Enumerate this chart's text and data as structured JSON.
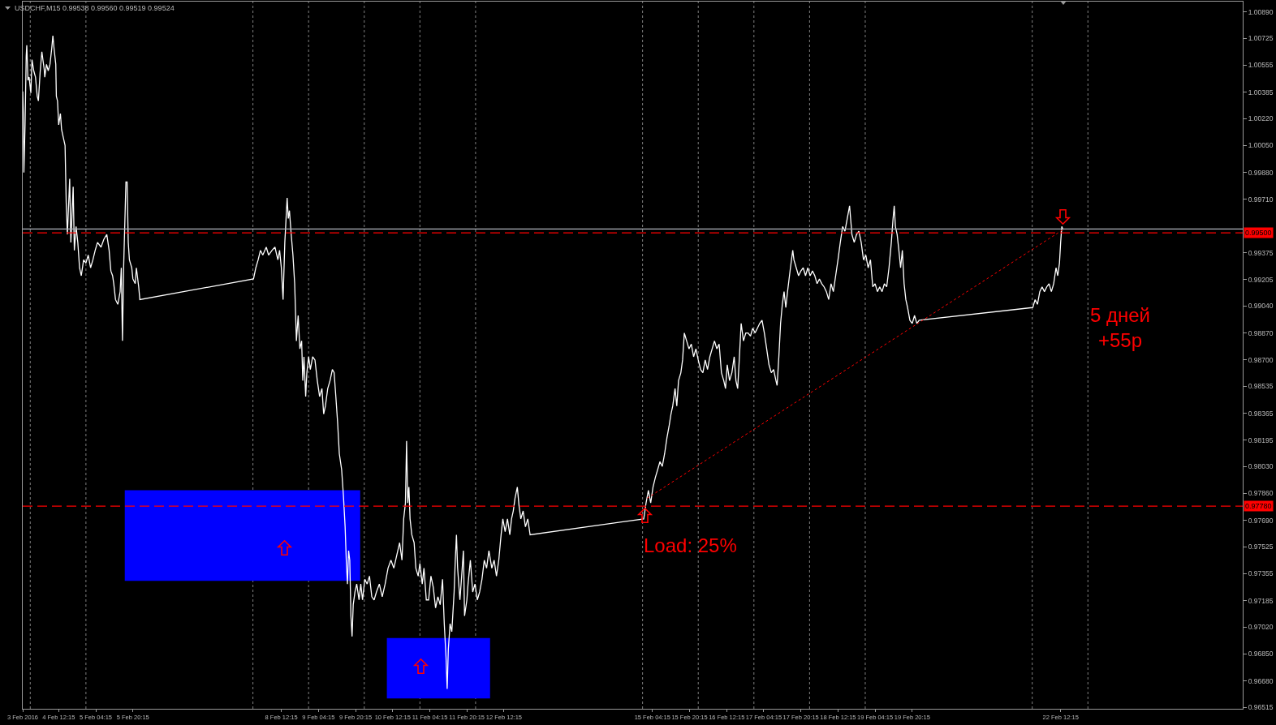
{
  "chart_data": {
    "type": "line",
    "title": "USDCHF,M15 0.99538 0.99560 0.99519 0.99524",
    "xlim": [
      "2016-02-03T20:45",
      "2016-02-25T18:45"
    ],
    "ylim": [
      0.96505,
      1.00955
    ],
    "xticks": [
      {
        "value": "2016-02-03T20:45",
        "label": "3 Feb 2016"
      },
      {
        "value": "2016-02-04T12:15",
        "label": "4 Feb 12:15"
      },
      {
        "value": "2016-02-05T04:15",
        "label": "5 Feb 04:15"
      },
      {
        "value": "2016-02-05T20:15",
        "label": "5 Feb 20:15"
      },
      {
        "value": "2016-02-08T12:15",
        "label": "8 Feb 12:15"
      },
      {
        "value": "2016-02-09T04:15",
        "label": "9 Feb 04:15"
      },
      {
        "value": "2016-02-09T20:15",
        "label": "9 Feb 20:15"
      },
      {
        "value": "2016-02-10T12:15",
        "label": "10 Feb 12:15"
      },
      {
        "value": "2016-02-11T04:15",
        "label": "11 Feb 04:15"
      },
      {
        "value": "2016-02-11T20:15",
        "label": "11 Feb 20:15"
      },
      {
        "value": "2016-02-12T12:15",
        "label": "12 Feb 12:15"
      },
      {
        "value": "2016-02-15T04:15",
        "label": "15 Feb 04:15"
      },
      {
        "value": "2016-02-15T20:15",
        "label": "15 Feb 20:15"
      },
      {
        "value": "2016-02-16T12:15",
        "label": "16 Feb 12:15"
      },
      {
        "value": "2016-02-17T04:15",
        "label": "17 Feb 04:15"
      },
      {
        "value": "2016-02-17T20:15",
        "label": "17 Feb 20:15"
      },
      {
        "value": "2016-02-18T12:15",
        "label": "18 Feb 12:15"
      },
      {
        "value": "2016-02-19T04:15",
        "label": "19 Feb 04:15"
      },
      {
        "value": "2016-02-19T20:15",
        "label": "19 Feb 20:15"
      },
      {
        "value": "2016-02-22T12:15",
        "label": "22 Feb 12:15"
      }
    ],
    "yticks": [
      {
        "value": 1.0089,
        "label": "1.00890"
      },
      {
        "value": 1.00725,
        "label": "1.00725"
      },
      {
        "value": 1.00555,
        "label": "1.00555"
      },
      {
        "value": 1.00385,
        "label": "1.00385"
      },
      {
        "value": 1.0022,
        "label": "1.00220"
      },
      {
        "value": 1.0005,
        "label": "1.00050"
      },
      {
        "value": 0.9988,
        "label": "0.99880"
      },
      {
        "value": 0.9971,
        "label": "0.99710"
      },
      {
        "value": 0.99375,
        "label": "0.99375"
      },
      {
        "value": 0.99205,
        "label": "0.99205"
      },
      {
        "value": 0.9904,
        "label": "0.99040"
      },
      {
        "value": 0.9887,
        "label": "0.98870"
      },
      {
        "value": 0.987,
        "label": "0.98700"
      },
      {
        "value": 0.98535,
        "label": "0.98535"
      },
      {
        "value": 0.98365,
        "label": "0.98365"
      },
      {
        "value": 0.98195,
        "label": "0.98195"
      },
      {
        "value": 0.9803,
        "label": "0.98030"
      },
      {
        "value": 0.9786,
        "label": "0.97860"
      },
      {
        "value": 0.9769,
        "label": "0.97690"
      },
      {
        "value": 0.97525,
        "label": "0.97525"
      },
      {
        "value": 0.97355,
        "label": "0.97355"
      },
      {
        "value": 0.97185,
        "label": "0.97185"
      },
      {
        "value": 0.9702,
        "label": "0.97020"
      },
      {
        "value": 0.9685,
        "label": "0.96850"
      },
      {
        "value": 0.9668,
        "label": "0.96680"
      },
      {
        "value": 0.96515,
        "label": "0.96515"
      }
    ],
    "series": [
      {
        "x": [
          "2016-02-05T16:45",
          "2016-02-09T22:15"
        ],
        "values": [
          null,
          null
        ],
        "lower": [
          0.9731,
          0.9731
        ],
        "upper": [
          0.9788,
          0.9788
        ],
        "color": "#0000ff"
      },
      {
        "x": [
          "2016-02-10T09:45",
          "2016-02-12T06:15"
        ],
        "values": [
          null,
          null
        ],
        "lower": [
          0.9657,
          0.9657
        ],
        "upper": [
          0.9695,
          0.9695
        ],
        "color": "#0000ff"
      },
      {
        "color": "#ffffff",
        "x": [
          "2016-02-03T20:45",
          "2016-02-03T21:00",
          "2016-02-03T21:15",
          "2016-02-03T21:45",
          "2016-02-03T22:15",
          "2016-02-03T22:30",
          "2016-02-03T23:00",
          "2016-02-03T23:30",
          "2016-02-04T00:15",
          "2016-02-04T00:45",
          "2016-02-04T01:30",
          "2016-02-04T02:15",
          "2016-02-04T03:00",
          "2016-02-04T03:30",
          "2016-02-04T04:15",
          "2016-02-04T05:00",
          "2016-02-04T06:00",
          "2016-02-04T06:15",
          "2016-02-04T07:00",
          "2016-02-04T07:45",
          "2016-02-04T08:30",
          "2016-02-04T09:15",
          "2016-02-04T09:45",
          "2016-02-04T10:15",
          "2016-02-04T11:00",
          "2016-02-04T11:15",
          "2016-02-04T11:45",
          "2016-02-04T12:15",
          "2016-02-04T13:00",
          "2016-02-04T13:30",
          "2016-02-04T14:15",
          "2016-02-04T15:00",
          "2016-02-04T15:30",
          "2016-02-04T16:00",
          "2016-02-04T17:00",
          "2016-02-04T17:30",
          "2016-02-04T18:30",
          "2016-02-04T19:00",
          "2016-02-04T19:45",
          "2016-02-04T20:30",
          "2016-02-04T21:15",
          "2016-02-04T22:00",
          "2016-02-04T23:00",
          "2016-02-05T00:00",
          "2016-02-05T01:00",
          "2016-02-05T02:00",
          "2016-02-05T03:00",
          "2016-02-05T04:00",
          "2016-02-05T05:00",
          "2016-02-05T06:30",
          "2016-02-05T07:45",
          "2016-02-05T09:00",
          "2016-02-05T10:00",
          "2016-02-05T10:45",
          "2016-02-05T11:30",
          "2016-02-05T12:00",
          "2016-02-05T12:45",
          "2016-02-05T13:45",
          "2016-02-05T14:45",
          "2016-02-05T15:15",
          "2016-02-05T15:45",
          "2016-02-05T16:15",
          "2016-02-05T17:15",
          "2016-02-05T17:45",
          "2016-02-05T18:15",
          "2016-02-05T18:45",
          "2016-02-05T19:45",
          "2016-02-05T20:15",
          "2016-02-05T21:15",
          "2016-02-05T21:45",
          "2016-02-05T22:45",
          "2016-02-05T23:15",
          "2016-02-08T00:15",
          "2016-02-08T01:15",
          "2016-02-08T02:15",
          "2016-02-08T03:15",
          "2016-02-08T04:15",
          "2016-02-08T05:45",
          "2016-02-08T06:45",
          "2016-02-08T08:15",
          "2016-02-08T09:30",
          "2016-02-08T10:45",
          "2016-02-08T11:30",
          "2016-02-08T12:15",
          "2016-02-08T13:00",
          "2016-02-08T13:45",
          "2016-02-08T14:45",
          "2016-02-08T15:15",
          "2016-02-08T15:45",
          "2016-02-08T16:30",
          "2016-02-08T17:15",
          "2016-02-08T18:00",
          "2016-02-08T18:45",
          "2016-02-08T19:30",
          "2016-02-08T20:15",
          "2016-02-08T21:00",
          "2016-02-08T21:30",
          "2016-02-08T22:00",
          "2016-02-08T22:45",
          "2016-02-08T23:15",
          "2016-02-09T00:00",
          "2016-02-09T00:45",
          "2016-02-09T01:45",
          "2016-02-09T02:45",
          "2016-02-09T03:45",
          "2016-02-09T04:45",
          "2016-02-09T05:45",
          "2016-02-09T06:30",
          "2016-02-09T07:15",
          "2016-02-09T08:15",
          "2016-02-09T09:15",
          "2016-02-09T10:15",
          "2016-02-09T11:00",
          "2016-02-09T11:45",
          "2016-02-09T12:30",
          "2016-02-09T13:15",
          "2016-02-09T14:15",
          "2016-02-09T15:00",
          "2016-02-09T15:45",
          "2016-02-09T16:15",
          "2016-02-09T16:45",
          "2016-02-09T17:15",
          "2016-02-09T17:45",
          "2016-02-09T18:15",
          "2016-02-09T18:45",
          "2016-02-09T19:15",
          "2016-02-09T20:00",
          "2016-02-09T20:45",
          "2016-02-09T21:45",
          "2016-02-09T22:30",
          "2016-02-09T23:15",
          "2016-02-10T00:15",
          "2016-02-10T01:15",
          "2016-02-10T02:15",
          "2016-02-10T03:15",
          "2016-02-10T04:15",
          "2016-02-10T05:15",
          "2016-02-10T06:30",
          "2016-02-10T07:45",
          "2016-02-10T09:00",
          "2016-02-10T10:15",
          "2016-02-10T11:30",
          "2016-02-10T12:45",
          "2016-02-10T14:00",
          "2016-02-10T15:15",
          "2016-02-10T16:15",
          "2016-02-10T17:00",
          "2016-02-10T17:45",
          "2016-02-10T18:15",
          "2016-02-10T18:45",
          "2016-02-10T19:15",
          "2016-02-10T19:45",
          "2016-02-10T20:30",
          "2016-02-10T21:30",
          "2016-02-10T22:15",
          "2016-02-10T23:15",
          "2016-02-11T00:00",
          "2016-02-11T01:00",
          "2016-02-11T01:45",
          "2016-02-11T02:45",
          "2016-02-11T03:45",
          "2016-02-11T04:45",
          "2016-02-11T05:45",
          "2016-02-11T06:45",
          "2016-02-11T07:45",
          "2016-02-11T08:45",
          "2016-02-11T09:45",
          "2016-02-11T10:30",
          "2016-02-11T11:15",
          "2016-02-11T11:45",
          "2016-02-11T12:15",
          "2016-02-11T13:00",
          "2016-02-11T13:45",
          "2016-02-11T14:45",
          "2016-02-11T15:15",
          "2016-02-11T15:45",
          "2016-02-11T16:15",
          "2016-02-11T17:15",
          "2016-02-11T17:45",
          "2016-02-11T18:45",
          "2016-02-11T19:15",
          "2016-02-11T20:15",
          "2016-02-11T20:45",
          "2016-02-11T21:45",
          "2016-02-11T22:45",
          "2016-02-11T23:45",
          "2016-02-12T00:45",
          "2016-02-12T01:45",
          "2016-02-12T02:45",
          "2016-02-12T03:45",
          "2016-02-12T04:45",
          "2016-02-12T05:45",
          "2016-02-12T07:00",
          "2016-02-12T08:00",
          "2016-02-12T09:00",
          "2016-02-12T10:00",
          "2016-02-12T11:00",
          "2016-02-12T11:45",
          "2016-02-12T12:45",
          "2016-02-12T13:45",
          "2016-02-12T14:45",
          "2016-02-12T15:30",
          "2016-02-12T16:15",
          "2016-02-12T17:00",
          "2016-02-12T18:00",
          "2016-02-12T18:45",
          "2016-02-12T19:30",
          "2016-02-12T20:30",
          "2016-02-12T21:30",
          "2016-02-12T22:30",
          "2016-02-12T23:30",
          "2016-02-15T00:30",
          "2016-02-15T01:30",
          "2016-02-15T02:30",
          "2016-02-15T03:30",
          "2016-02-15T04:30",
          "2016-02-15T05:30",
          "2016-02-15T06:30",
          "2016-02-15T07:30",
          "2016-02-15T08:30",
          "2016-02-15T09:30",
          "2016-02-15T10:30",
          "2016-02-15T11:30",
          "2016-02-15T12:15",
          "2016-02-15T13:00",
          "2016-02-15T14:00",
          "2016-02-15T14:45",
          "2016-02-15T15:30",
          "2016-02-15T16:30",
          "2016-02-15T17:15",
          "2016-02-15T18:00",
          "2016-02-15T19:00",
          "2016-02-15T20:00",
          "2016-02-15T21:00",
          "2016-02-15T22:00",
          "2016-02-15T23:00",
          "2016-02-16T00:00",
          "2016-02-16T01:00",
          "2016-02-16T02:00",
          "2016-02-16T03:00",
          "2016-02-16T04:00",
          "2016-02-16T05:00",
          "2016-02-16T06:00",
          "2016-02-16T07:00",
          "2016-02-16T08:00",
          "2016-02-16T09:00",
          "2016-02-16T10:00",
          "2016-02-16T11:00",
          "2016-02-16T11:45",
          "2016-02-16T12:30",
          "2016-02-16T13:30",
          "2016-02-16T14:30",
          "2016-02-16T15:30",
          "2016-02-16T16:15",
          "2016-02-16T17:00",
          "2016-02-16T17:45",
          "2016-02-16T18:30",
          "2016-02-16T19:30",
          "2016-02-16T20:30",
          "2016-02-16T21:30",
          "2016-02-16T22:30",
          "2016-02-16T23:30",
          "2016-02-17T00:30",
          "2016-02-17T01:30",
          "2016-02-17T02:30",
          "2016-02-17T03:30",
          "2016-02-17T04:30",
          "2016-02-17T05:30",
          "2016-02-17T06:30",
          "2016-02-17T07:30",
          "2016-02-17T08:30",
          "2016-02-17T09:30",
          "2016-02-17T10:00",
          "2016-02-17T10:45",
          "2016-02-17T11:30",
          "2016-02-17T12:15",
          "2016-02-17T13:00",
          "2016-02-17T13:45",
          "2016-02-17T14:30",
          "2016-02-17T15:45",
          "2016-02-17T16:45",
          "2016-02-17T17:15",
          "2016-02-17T18:15",
          "2016-02-17T19:15",
          "2016-02-17T20:15",
          "2016-02-17T21:15",
          "2016-02-17T22:15",
          "2016-02-17T23:15",
          "2016-02-18T00:15",
          "2016-02-18T01:15",
          "2016-02-18T02:15",
          "2016-02-18T03:15",
          "2016-02-18T04:15",
          "2016-02-18T05:15",
          "2016-02-18T06:15",
          "2016-02-18T07:15",
          "2016-02-18T08:15",
          "2016-02-18T09:15",
          "2016-02-18T10:15",
          "2016-02-18T11:15",
          "2016-02-18T12:15",
          "2016-02-18T13:15",
          "2016-02-18T14:15",
          "2016-02-18T15:15",
          "2016-02-18T16:15",
          "2016-02-18T17:15",
          "2016-02-18T18:15",
          "2016-02-18T19:15",
          "2016-02-18T20:15",
          "2016-02-18T21:15",
          "2016-02-18T22:15",
          "2016-02-18T23:15",
          "2016-02-19T00:15",
          "2016-02-19T01:15",
          "2016-02-19T02:15",
          "2016-02-19T03:15",
          "2016-02-19T04:15",
          "2016-02-19T05:15",
          "2016-02-19T06:15",
          "2016-02-19T07:15",
          "2016-02-19T08:15",
          "2016-02-19T09:15",
          "2016-02-19T10:15",
          "2016-02-19T11:15",
          "2016-02-19T12:00",
          "2016-02-19T12:30",
          "2016-02-19T13:00",
          "2016-02-19T13:45",
          "2016-02-19T14:30",
          "2016-02-19T15:15",
          "2016-02-19T16:00",
          "2016-02-19T16:45",
          "2016-02-19T17:30",
          "2016-02-19T18:15",
          "2016-02-19T19:15",
          "2016-02-19T20:15",
          "2016-02-19T21:15",
          "2016-02-19T22:15",
          "2016-02-19T23:15",
          "2016-02-22T00:15",
          "2016-02-22T01:15",
          "2016-02-22T02:15",
          "2016-02-22T03:15",
          "2016-02-22T04:15",
          "2016-02-22T05:15",
          "2016-02-22T06:15",
          "2016-02-22T07:15",
          "2016-02-22T08:15",
          "2016-02-22T09:15",
          "2016-02-22T10:15",
          "2016-02-22T11:00",
          "2016-02-22T11:45",
          "2016-02-22T12:15",
          "2016-02-22T12:45",
          "2016-02-22T13:15"
        ],
        "values": [
          1.0039,
          1.0025,
          0.9988,
          1.0018,
          1.0061,
          1.0068,
          1.0046,
          1.0048,
          1.0038,
          1.0059,
          1.0052,
          1.0048,
          1.0036,
          1.0033,
          1.0051,
          1.0064,
          1.0053,
          1.0048,
          1.0056,
          1.0052,
          1.0056,
          1.0066,
          1.0074,
          1.0066,
          1.0056,
          1.0036,
          1.0033,
          1.0018,
          1.0025,
          1.0015,
          1.001,
          1.0005,
          0.9969,
          0.9949,
          0.9984,
          0.9944,
          0.9979,
          0.9939,
          0.9954,
          0.9944,
          0.9928,
          0.9923,
          0.9933,
          0.9931,
          0.9936,
          0.9928,
          0.9933,
          0.9939,
          0.9944,
          0.9941,
          0.9946,
          0.9949,
          0.9939,
          0.9926,
          0.9923,
          0.9918,
          0.9908,
          0.9905,
          0.9913,
          0.9928,
          0.9882,
          0.9928,
          0.9982,
          0.9982,
          0.9944,
          0.9933,
          0.9928,
          0.9921,
          0.9918,
          0.9928,
          0.9916,
          0.9908,
          0.9921,
          0.9928,
          0.9933,
          0.9939,
          0.9936,
          0.9941,
          0.9936,
          0.9939,
          0.9941,
          0.9933,
          0.9939,
          0.9928,
          0.9908,
          0.9944,
          0.9972,
          0.9959,
          0.9964,
          0.9949,
          0.9936,
          0.9918,
          0.9882,
          0.9898,
          0.9877,
          0.9882,
          0.9857,
          0.9872,
          0.9847,
          0.9862,
          0.9872,
          0.9864,
          0.9872,
          0.987,
          0.9857,
          0.9847,
          0.9852,
          0.9836,
          0.9841,
          0.9852,
          0.9857,
          0.9864,
          0.9862,
          0.9847,
          0.9831,
          0.9811,
          0.9801,
          0.9785,
          0.9765,
          0.9744,
          0.9729,
          0.975,
          0.9744,
          0.9709,
          0.9696,
          0.9716,
          0.9724,
          0.9729,
          0.9719,
          0.9729,
          0.9719,
          0.9732,
          0.9729,
          0.9734,
          0.9721,
          0.9719,
          0.9724,
          0.9729,
          0.9721,
          0.9729,
          0.9739,
          0.9744,
          0.9739,
          0.9747,
          0.9755,
          0.9744,
          0.977,
          0.978,
          0.9819,
          0.978,
          0.979,
          0.977,
          0.976,
          0.9755,
          0.9739,
          0.9734,
          0.9742,
          0.9729,
          0.9739,
          0.9719,
          0.9719,
          0.9734,
          0.9727,
          0.9714,
          0.9721,
          0.9716,
          0.9732,
          0.9704,
          0.9683,
          0.9663,
          0.9688,
          0.9704,
          0.9699,
          0.9724,
          0.9744,
          0.976,
          0.9739,
          0.9719,
          0.9729,
          0.975,
          0.9709,
          0.9719,
          0.9729,
          0.9744,
          0.9724,
          0.9729,
          0.9719,
          0.9724,
          0.9732,
          0.9744,
          0.9739,
          0.975,
          0.9739,
          0.9744,
          0.9734,
          0.9744,
          0.976,
          0.977,
          0.9762,
          0.977,
          0.976,
          0.977,
          0.9775,
          0.9783,
          0.979,
          0.9778,
          0.977,
          0.9775,
          0.9765,
          0.977,
          0.976,
          0.977,
          0.978,
          0.9788,
          0.978,
          0.979,
          0.9796,
          0.9801,
          0.9806,
          0.9803,
          0.9811,
          0.9821,
          0.9829,
          0.9836,
          0.9841,
          0.9852,
          0.9841,
          0.9857,
          0.9862,
          0.987,
          0.9887,
          0.9882,
          0.9877,
          0.988,
          0.9872,
          0.9877,
          0.987,
          0.9864,
          0.9862,
          0.987,
          0.9864,
          0.9872,
          0.9877,
          0.9882,
          0.9877,
          0.988,
          0.9862,
          0.9857,
          0.9852,
          0.9867,
          0.9857,
          0.9862,
          0.9872,
          0.9857,
          0.9852,
          0.9872,
          0.9893,
          0.9882,
          0.9887,
          0.9887,
          0.9885,
          0.989,
          0.9887,
          0.989,
          0.9893,
          0.9895,
          0.9887,
          0.9877,
          0.9867,
          0.9862,
          0.9864,
          0.9857,
          0.9854,
          0.9872,
          0.9893,
          0.9905,
          0.9913,
          0.9903,
          0.9913,
          0.9928,
          0.9939,
          0.9933,
          0.9928,
          0.9923,
          0.9926,
          0.9928,
          0.9923,
          0.9928,
          0.9923,
          0.9926,
          0.9923,
          0.9918,
          0.9921,
          0.9918,
          0.9916,
          0.9913,
          0.9908,
          0.9918,
          0.9913,
          0.9923,
          0.9933,
          0.9944,
          0.9954,
          0.9951,
          0.9959,
          0.9967,
          0.9949,
          0.9944,
          0.9949,
          0.9951,
          0.9944,
          0.9933,
          0.9936,
          0.9928,
          0.9933,
          0.9916,
          0.9918,
          0.9913,
          0.9916,
          0.9913,
          0.9918,
          0.9916,
          0.9928,
          0.9944,
          0.9959,
          0.9967,
          0.9954,
          0.9949,
          0.9939,
          0.9928,
          0.9939,
          0.9918,
          0.9908,
          0.9903,
          0.9895,
          0.9893,
          0.9898,
          0.9893,
          0.9895,
          0.9903,
          0.9908,
          0.9905,
          0.9913,
          0.9916,
          0.9913,
          0.9916,
          0.9918,
          0.9913,
          0.9918,
          0.9928,
          0.9923,
          0.9931,
          0.9944,
          0.9954,
          0.9952
        ]
      },
      {
        "x": [
          "2016-02-15T02:00",
          "2016-02-22T13:15"
        ],
        "values": [
          0.9783,
          0.9952
        ],
        "color": "#ff0000",
        "line_style": "dotted"
      }
    ],
    "ref_lines": [
      {
        "axis": "x",
        "value": "2016-02-04",
        "color": "#808080",
        "line_style": "dotted"
      },
      {
        "axis": "x",
        "value": "2016-02-05",
        "color": "#808080",
        "line_style": "dotted"
      },
      {
        "axis": "x",
        "value": "2016-02-08",
        "color": "#808080",
        "line_style": "dotted"
      },
      {
        "axis": "x",
        "value": "2016-02-09",
        "color": "#808080",
        "line_style": "dotted"
      },
      {
        "axis": "x",
        "value": "2016-02-10",
        "color": "#808080",
        "line_style": "dotted"
      },
      {
        "axis": "x",
        "value": "2016-02-11",
        "color": "#808080",
        "line_style": "dotted"
      },
      {
        "axis": "x",
        "value": "2016-02-12",
        "color": "#808080",
        "line_style": "dotted"
      },
      {
        "axis": "x",
        "value": "2016-02-15",
        "color": "#808080",
        "line_style": "dotted"
      },
      {
        "axis": "x",
        "value": "2016-02-16",
        "color": "#808080",
        "line_style": "dotted"
      },
      {
        "axis": "x",
        "value": "2016-02-17",
        "color": "#808080",
        "line_style": "dotted"
      },
      {
        "axis": "x",
        "value": "2016-02-18",
        "color": "#808080",
        "line_style": "dotted"
      },
      {
        "axis": "x",
        "value": "2016-02-19",
        "color": "#808080",
        "line_style": "dotted"
      },
      {
        "axis": "x",
        "value": "2016-02-22",
        "color": "#808080",
        "line_style": "dotted"
      },
      {
        "axis": "x",
        "value": "2016-02-23",
        "color": "#808080",
        "line_style": "dotted"
      },
      {
        "axis": "y",
        "value": 0.99524,
        "color": "#b0b4bc",
        "line_style": "solid"
      },
      {
        "axis": "y",
        "value": 0.995,
        "label": "0.99500",
        "color": "#ff0000",
        "line_style": "dashed"
      },
      {
        "axis": "y",
        "value": 0.9778,
        "label": "0.97780",
        "color": "#ff0000",
        "line_style": "dashed"
      }
    ],
    "annotations": [
      "Load: 25%",
      "5 дней\n+55p"
    ]
  }
}
